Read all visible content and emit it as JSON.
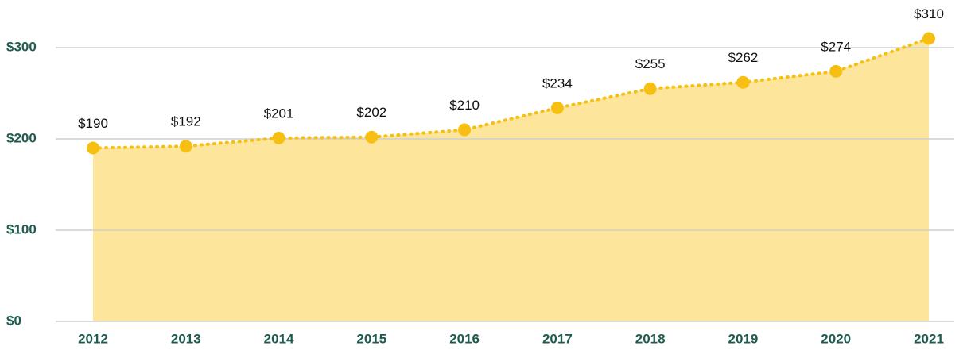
{
  "chart_data": {
    "type": "area",
    "categories": [
      "2012",
      "2013",
      "2014",
      "2015",
      "2016",
      "2017",
      "2018",
      "2019",
      "2020",
      "2021"
    ],
    "values": [
      190,
      192,
      201,
      202,
      210,
      234,
      255,
      262,
      274,
      310
    ],
    "value_labels": [
      "$190",
      "$192",
      "$201",
      "$202",
      "$210",
      "$234",
      "$255",
      "$262",
      "$274",
      "$310"
    ],
    "color": "#f6bf12",
    "fill_color": "#fde59b",
    "ylim": [
      0,
      300
    ],
    "yticks": [
      {
        "value": 0,
        "label": "$0"
      },
      {
        "value": 100,
        "label": "$100"
      },
      {
        "value": 200,
        "label": "$200"
      },
      {
        "value": 300,
        "label": "$300"
      }
    ],
    "grid": true
  }
}
